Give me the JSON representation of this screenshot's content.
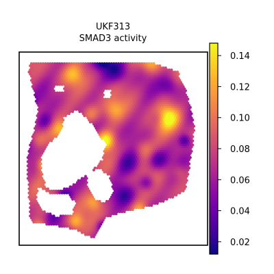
{
  "chart_data": {
    "type": "scatter",
    "title_line1": "UKF313",
    "title_line2": "SMAD3 activity",
    "xlabel": "",
    "ylabel": "",
    "grid": false,
    "colormap": "plasma",
    "colorbar": {
      "position": "right",
      "vmin": 0.012,
      "vmax": 0.148,
      "ticks": [
        0.02,
        0.04,
        0.06,
        0.08,
        0.1,
        0.12,
        0.14
      ],
      "tick_labels": [
        "0.02",
        "0.04",
        "0.06",
        "0.08",
        "0.10",
        "0.12",
        "0.14"
      ]
    },
    "tissue": {
      "outer": [
        [
          0.06,
          0.06
        ],
        [
          0.72,
          0.06
        ],
        [
          0.84,
          0.1
        ],
        [
          0.88,
          0.18
        ],
        [
          0.91,
          0.28
        ],
        [
          0.93,
          0.38
        ],
        [
          0.92,
          0.5
        ],
        [
          0.9,
          0.62
        ],
        [
          0.88,
          0.72
        ],
        [
          0.8,
          0.76
        ],
        [
          0.7,
          0.8
        ],
        [
          0.58,
          0.82
        ],
        [
          0.46,
          0.86
        ],
        [
          0.4,
          0.97
        ],
        [
          0.3,
          0.92
        ],
        [
          0.2,
          0.9
        ],
        [
          0.06,
          0.88
        ],
        [
          0.05,
          0.72
        ],
        [
          0.04,
          0.55
        ],
        [
          0.08,
          0.4
        ],
        [
          0.1,
          0.3
        ],
        [
          0.07,
          0.18
        ],
        [
          0.05,
          0.1
        ]
      ],
      "holes": [
        [
          [
            0.12,
            0.54
          ],
          [
            0.16,
            0.47
          ],
          [
            0.22,
            0.42
          ],
          [
            0.24,
            0.34
          ],
          [
            0.3,
            0.3
          ],
          [
            0.36,
            0.34
          ],
          [
            0.42,
            0.42
          ],
          [
            0.46,
            0.48
          ],
          [
            0.44,
            0.56
          ],
          [
            0.38,
            0.62
          ],
          [
            0.32,
            0.66
          ],
          [
            0.26,
            0.7
          ],
          [
            0.2,
            0.72
          ],
          [
            0.14,
            0.7
          ],
          [
            0.12,
            0.62
          ]
        ],
        [
          [
            0.1,
            0.7
          ],
          [
            0.18,
            0.74
          ],
          [
            0.26,
            0.74
          ],
          [
            0.3,
            0.78
          ],
          [
            0.28,
            0.84
          ],
          [
            0.2,
            0.85
          ],
          [
            0.12,
            0.82
          ],
          [
            0.09,
            0.76
          ]
        ],
        [
          [
            0.36,
            0.63
          ],
          [
            0.42,
            0.6
          ],
          [
            0.48,
            0.64
          ],
          [
            0.5,
            0.72
          ],
          [
            0.46,
            0.78
          ],
          [
            0.4,
            0.76
          ],
          [
            0.36,
            0.7
          ]
        ],
        [
          [
            0.19,
            0.17
          ],
          [
            0.24,
            0.17
          ],
          [
            0.24,
            0.21
          ],
          [
            0.19,
            0.21
          ]
        ],
        [
          [
            0.45,
            0.2
          ],
          [
            0.49,
            0.2
          ],
          [
            0.49,
            0.24
          ],
          [
            0.45,
            0.24
          ]
        ]
      ]
    },
    "hotspots": [
      {
        "x": 0.79,
        "y": 0.34,
        "r": 0.06,
        "value": 0.145
      },
      {
        "x": 0.7,
        "y": 0.06,
        "r": 0.05,
        "value": 0.13
      },
      {
        "x": 0.46,
        "y": 0.46,
        "r": 0.045,
        "value": 0.145
      },
      {
        "x": 0.14,
        "y": 0.58,
        "r": 0.04,
        "value": 0.14
      },
      {
        "x": 0.22,
        "y": 0.58,
        "r": 0.04,
        "value": 0.13
      },
      {
        "x": 0.38,
        "y": 0.32,
        "r": 0.05,
        "value": 0.12
      },
      {
        "x": 0.5,
        "y": 0.3,
        "r": 0.05,
        "value": 0.11
      },
      {
        "x": 0.64,
        "y": 0.82,
        "r": 0.04,
        "value": 0.12
      },
      {
        "x": 0.29,
        "y": 0.12,
        "r": 0.05,
        "value": 0.11
      },
      {
        "x": 0.66,
        "y": 0.5,
        "r": 0.05,
        "value": 0.11
      },
      {
        "x": 0.11,
        "y": 0.91,
        "r": 0.03,
        "value": 0.13
      },
      {
        "x": 0.3,
        "y": 0.88,
        "r": 0.04,
        "value": 0.12
      },
      {
        "x": 0.85,
        "y": 0.62,
        "r": 0.04,
        "value": 0.1
      },
      {
        "x": 0.4,
        "y": 0.78,
        "r": 0.04,
        "value": 0.11
      },
      {
        "x": 0.22,
        "y": 0.4,
        "r": 0.04,
        "value": 0.11
      },
      {
        "x": 0.1,
        "y": 0.45,
        "r": 0.04,
        "value": 0.1
      }
    ],
    "coldspots": [
      {
        "x": 0.52,
        "y": 0.1,
        "r": 0.06,
        "value": 0.03
      },
      {
        "x": 0.44,
        "y": 0.05,
        "r": 0.04,
        "value": 0.02
      },
      {
        "x": 0.58,
        "y": 0.58,
        "r": 0.06,
        "value": 0.03
      },
      {
        "x": 0.74,
        "y": 0.56,
        "r": 0.05,
        "value": 0.03
      },
      {
        "x": 0.8,
        "y": 0.18,
        "r": 0.05,
        "value": 0.04
      },
      {
        "x": 0.24,
        "y": 0.74,
        "r": 0.04,
        "value": 0.03
      },
      {
        "x": 0.56,
        "y": 0.74,
        "r": 0.05,
        "value": 0.04
      },
      {
        "x": 0.68,
        "y": 0.68,
        "r": 0.04,
        "value": 0.03
      },
      {
        "x": 0.14,
        "y": 0.36,
        "r": 0.04,
        "value": 0.04
      },
      {
        "x": 0.34,
        "y": 0.58,
        "r": 0.03,
        "value": 0.04
      },
      {
        "x": 0.06,
        "y": 0.25,
        "r": 0.03,
        "value": 0.04
      },
      {
        "x": 0.74,
        "y": 0.34,
        "r": 0.04,
        "value": 0.05
      },
      {
        "x": 0.88,
        "y": 0.46,
        "r": 0.03,
        "value": 0.03
      },
      {
        "x": 0.18,
        "y": 0.84,
        "r": 0.04,
        "value": 0.05
      },
      {
        "x": 0.44,
        "y": 0.9,
        "r": 0.03,
        "value": 0.04
      }
    ],
    "baseline_value": 0.075
  }
}
